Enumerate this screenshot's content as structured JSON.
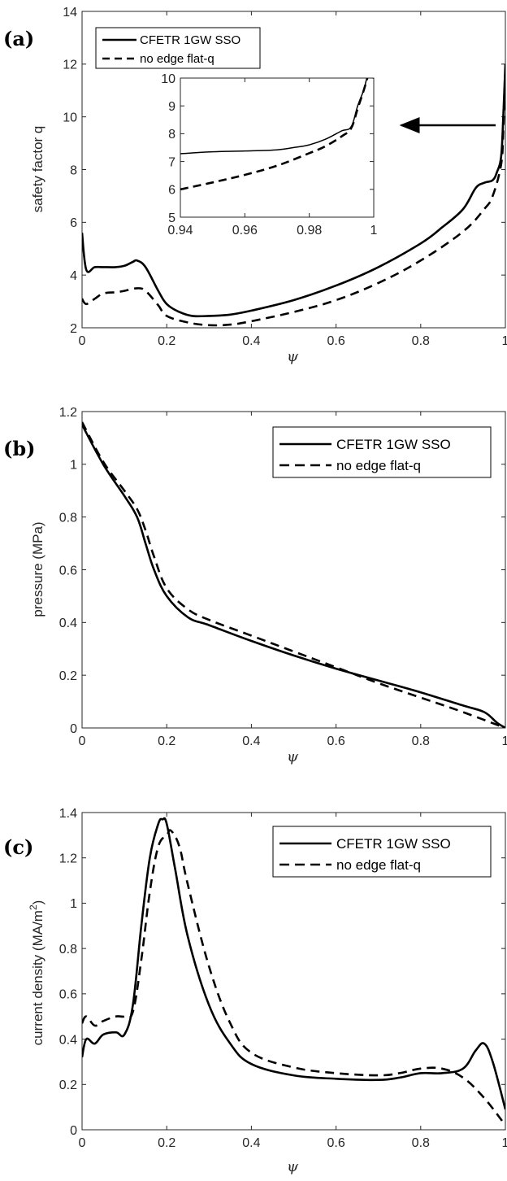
{
  "chart_data": [
    {
      "type": "line",
      "panel_label": "(a)",
      "xlabel": "ψ",
      "ylabel": "safety factor q",
      "xlim": [
        0,
        1
      ],
      "ylim": [
        2,
        14
      ],
      "xticks": [
        "0",
        "0.2",
        "0.4",
        "0.6",
        "0.8",
        "1"
      ],
      "yticks": [
        "2",
        "4",
        "6",
        "8",
        "10",
        "12",
        "14"
      ],
      "legend_position": "top-left",
      "series": [
        {
          "name": "CFETR 1GW SSO",
          "style": "solid",
          "x": [
            0,
            0.01,
            0.03,
            0.05,
            0.08,
            0.1,
            0.12,
            0.13,
            0.15,
            0.18,
            0.2,
            0.23,
            0.26,
            0.3,
            0.35,
            0.4,
            0.5,
            0.6,
            0.7,
            0.8,
            0.85,
            0.9,
            0.93,
            0.95,
            0.97,
            0.98,
            0.99,
            0.995,
            1.0
          ],
          "y": [
            5.6,
            4.2,
            4.3,
            4.3,
            4.3,
            4.35,
            4.5,
            4.55,
            4.3,
            3.4,
            2.9,
            2.6,
            2.45,
            2.45,
            2.5,
            2.65,
            3.05,
            3.6,
            4.3,
            5.2,
            5.8,
            6.5,
            7.3,
            7.5,
            7.6,
            7.9,
            8.5,
            10.0,
            12.0
          ]
        },
        {
          "name": "no edge flat-q",
          "style": "dashed",
          "x": [
            0,
            0.01,
            0.03,
            0.05,
            0.08,
            0.1,
            0.13,
            0.15,
            0.18,
            0.2,
            0.25,
            0.3,
            0.35,
            0.4,
            0.5,
            0.6,
            0.7,
            0.8,
            0.9,
            0.95,
            0.97,
            0.99,
            0.995,
            1.0
          ],
          "y": [
            3.1,
            2.9,
            3.1,
            3.3,
            3.35,
            3.4,
            3.5,
            3.4,
            2.85,
            2.45,
            2.2,
            2.1,
            2.12,
            2.25,
            2.6,
            3.05,
            3.7,
            4.55,
            5.65,
            6.5,
            7.0,
            8.2,
            9.5,
            11.8
          ]
        }
      ],
      "inset": {
        "xlim": [
          0.94,
          1.0
        ],
        "ylim": [
          5,
          10
        ],
        "xticks": [
          "0.94",
          "0.96",
          "0.98",
          "1"
        ],
        "yticks": [
          "5",
          "6",
          "7",
          "8",
          "9",
          "10"
        ],
        "series": [
          {
            "name": "CFETR 1GW SSO",
            "style": "solid",
            "x": [
              0.94,
              0.95,
              0.96,
              0.97,
              0.975,
              0.98,
              0.985,
              0.99,
              0.993,
              0.995,
              0.997,
              0.998,
              1.0
            ],
            "y": [
              7.28,
              7.35,
              7.38,
              7.42,
              7.5,
              7.6,
              7.8,
              8.1,
              8.25,
              9.0,
              9.6,
              10.0,
              10.0
            ]
          },
          {
            "name": "no edge flat-q",
            "style": "dashed",
            "x": [
              0.94,
              0.95,
              0.96,
              0.97,
              0.98,
              0.985,
              0.99,
              0.993,
              0.995,
              0.997,
              0.998
            ],
            "y": [
              6.0,
              6.25,
              6.52,
              6.85,
              7.3,
              7.55,
              7.9,
              8.2,
              8.9,
              9.6,
              10.0
            ]
          }
        ]
      }
    },
    {
      "type": "line",
      "panel_label": "(b)",
      "xlabel": "ψ",
      "ylabel": "pressure (MPa)",
      "xlim": [
        0,
        1
      ],
      "ylim": [
        0,
        1.2
      ],
      "xticks": [
        "0",
        "0.2",
        "0.4",
        "0.6",
        "0.8",
        "1"
      ],
      "yticks": [
        "0",
        "0.2",
        "0.4",
        "0.6",
        "0.8",
        "1",
        "1.2"
      ],
      "legend_position": "top-right",
      "series": [
        {
          "name": "CFETR 1GW SSO",
          "style": "solid",
          "x": [
            0,
            0.05,
            0.1,
            0.13,
            0.15,
            0.17,
            0.2,
            0.25,
            0.3,
            0.4,
            0.5,
            0.6,
            0.7,
            0.8,
            0.9,
            0.95,
            0.98,
            1.0
          ],
          "y": [
            1.15,
            1.0,
            0.88,
            0.8,
            0.7,
            0.6,
            0.5,
            0.42,
            0.39,
            0.33,
            0.275,
            0.225,
            0.18,
            0.135,
            0.085,
            0.06,
            0.02,
            0.0
          ]
        },
        {
          "name": "no edge flat-q",
          "style": "dashed",
          "x": [
            0,
            0.05,
            0.1,
            0.13,
            0.15,
            0.17,
            0.2,
            0.25,
            0.3,
            0.4,
            0.5,
            0.6,
            0.7,
            0.8,
            0.9,
            1.0
          ],
          "y": [
            1.16,
            1.01,
            0.9,
            0.83,
            0.75,
            0.65,
            0.53,
            0.45,
            0.41,
            0.35,
            0.29,
            0.23,
            0.17,
            0.115,
            0.06,
            0.0
          ]
        }
      ]
    },
    {
      "type": "line",
      "panel_label": "(c)",
      "xlabel": "ψ",
      "ylabel": "current density (MA/m",
      "ylabel_sup": "2",
      "ylabel_end": ")",
      "xlim": [
        0,
        1
      ],
      "ylim": [
        0,
        1.4
      ],
      "xticks": [
        "0",
        "0.2",
        "0.4",
        "0.6",
        "0.8",
        "1"
      ],
      "yticks": [
        "0",
        "0.2",
        "0.4",
        "0.6",
        "0.8",
        "1",
        "1.2",
        "1.4"
      ],
      "legend_position": "top-right",
      "series": [
        {
          "name": "CFETR 1GW SSO",
          "style": "solid",
          "x": [
            0,
            0.01,
            0.03,
            0.05,
            0.08,
            0.1,
            0.12,
            0.14,
            0.16,
            0.18,
            0.19,
            0.2,
            0.22,
            0.25,
            0.3,
            0.35,
            0.4,
            0.5,
            0.6,
            0.7,
            0.75,
            0.8,
            0.85,
            0.9,
            0.93,
            0.95,
            0.97,
            1.0
          ],
          "y": [
            0.32,
            0.4,
            0.38,
            0.42,
            0.43,
            0.42,
            0.55,
            0.9,
            1.2,
            1.35,
            1.37,
            1.35,
            1.15,
            0.85,
            0.55,
            0.38,
            0.29,
            0.24,
            0.225,
            0.22,
            0.23,
            0.25,
            0.25,
            0.27,
            0.35,
            0.38,
            0.3,
            0.09
          ]
        },
        {
          "name": "no edge flat-q",
          "style": "dashed",
          "x": [
            0,
            0.01,
            0.03,
            0.05,
            0.08,
            0.1,
            0.12,
            0.14,
            0.16,
            0.18,
            0.2,
            0.21,
            0.23,
            0.25,
            0.3,
            0.35,
            0.4,
            0.5,
            0.6,
            0.7,
            0.75,
            0.8,
            0.85,
            0.9,
            0.95,
            1.0
          ],
          "y": [
            0.47,
            0.5,
            0.46,
            0.48,
            0.5,
            0.5,
            0.52,
            0.75,
            1.05,
            1.25,
            1.3,
            1.32,
            1.25,
            1.08,
            0.72,
            0.47,
            0.34,
            0.275,
            0.25,
            0.24,
            0.25,
            0.27,
            0.27,
            0.23,
            0.14,
            0.02
          ]
        }
      ]
    }
  ]
}
